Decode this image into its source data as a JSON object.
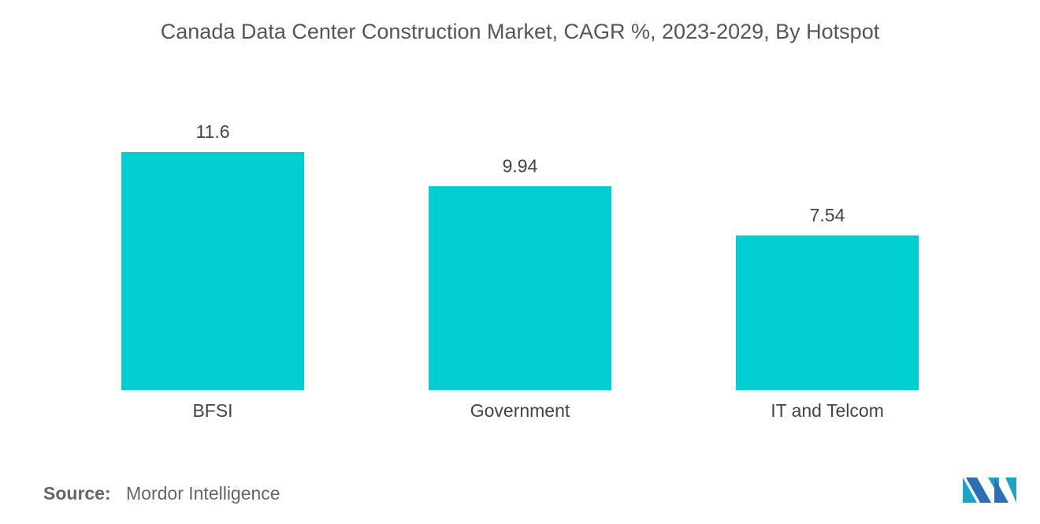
{
  "chart_data": {
    "type": "bar",
    "title": "Canada Data Center Construction Market, CAGR %, 2023-2029, By Hotspot",
    "categories": [
      "BFSI",
      "Government",
      "IT and Telcom"
    ],
    "values": [
      11.6,
      9.94,
      7.54
    ],
    "color": "#00ced1",
    "source_label": "Source:",
    "source": "Mordor Intelligence"
  }
}
